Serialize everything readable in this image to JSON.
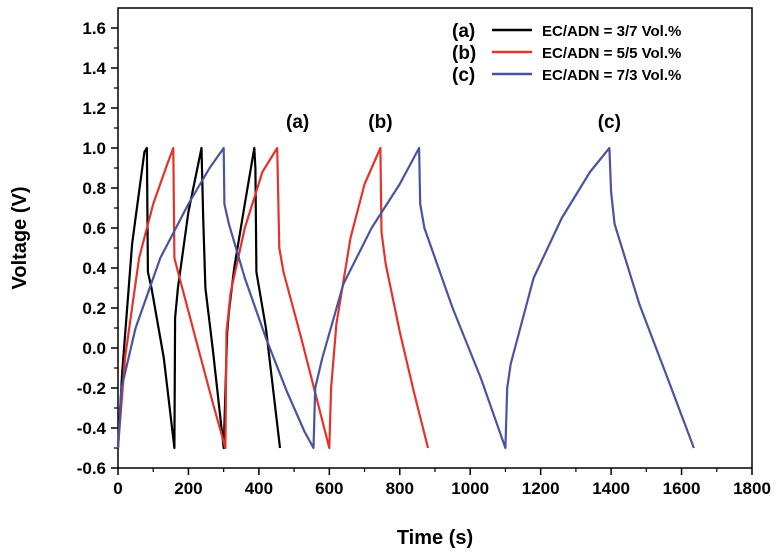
{
  "chart_data": {
    "type": "line",
    "title": "",
    "xlabel": "Time (s)",
    "ylabel": "Voltage (V)",
    "xlim": [
      0,
      1800
    ],
    "ylim": [
      -0.6,
      1.7
    ],
    "xticks": [
      0,
      200,
      400,
      600,
      800,
      1000,
      1200,
      1400,
      1600,
      1800
    ],
    "yticks": [
      -0.6,
      -0.4,
      -0.2,
      0.0,
      0.2,
      0.4,
      0.6,
      0.8,
      1.0,
      1.2,
      1.4,
      1.6
    ],
    "ytick_labels": [
      "-0.6",
      "-0.4",
      "-0.2",
      "0.0",
      "0.2",
      "0.4",
      "0.6",
      "0.8",
      "1.0",
      "1.2",
      "1.4",
      "1.6"
    ],
    "grid": false,
    "legend_position": "top-right",
    "series": [
      {
        "name": "EC/ADN = 3/7 Vol.%",
        "tag": "(a)",
        "color": "#000000",
        "x": [
          0,
          12,
          40,
          75,
          82,
          85,
          95,
          130,
          160,
          162,
          170,
          200,
          237,
          242,
          248,
          270,
          300,
          310,
          315,
          330,
          360,
          387,
          390,
          393,
          420,
          460
        ],
        "y": [
          -0.5,
          -0.12,
          0.52,
          0.98,
          1.0,
          0.38,
          0.3,
          -0.05,
          -0.5,
          0.15,
          0.3,
          0.68,
          1.0,
          0.65,
          0.3,
          -0.02,
          -0.5,
          0.08,
          0.18,
          0.4,
          0.72,
          1.0,
          0.9,
          0.38,
          0.1,
          -0.5
        ]
      },
      {
        "name": "EC/ADN = 5/5 Vol.%",
        "tag": "(b)",
        "color": "#e8312b",
        "x": [
          0,
          20,
          60,
          100,
          140,
          157,
          160,
          175,
          220,
          270,
          305,
          308,
          320,
          360,
          410,
          452,
          458,
          470,
          520,
          600,
          605,
          620,
          660,
          700,
          745,
          748,
          760,
          800,
          840,
          880
        ],
        "y": [
          -0.5,
          -0.05,
          0.45,
          0.72,
          0.92,
          1.0,
          0.45,
          0.35,
          0.05,
          -0.28,
          -0.5,
          0.08,
          0.28,
          0.6,
          0.88,
          1.0,
          0.5,
          0.38,
          0.05,
          -0.5,
          -0.2,
          0.12,
          0.55,
          0.82,
          1.0,
          0.58,
          0.42,
          0.08,
          -0.22,
          -0.5
        ]
      },
      {
        "name": "EC/ADN = 7/3 Vol.%",
        "tag": "(c)",
        "color": "#4854a0",
        "x": [
          0,
          10,
          50,
          120,
          200,
          260,
          300,
          302,
          315,
          360,
          420,
          480,
          530,
          555,
          560,
          580,
          640,
          720,
          800,
          855,
          858,
          870,
          950,
          1030,
          1100,
          1105,
          1115,
          1180,
          1260,
          1340,
          1395,
          1400,
          1410,
          1480,
          1560,
          1635
        ],
        "y": [
          -0.5,
          -0.2,
          0.1,
          0.45,
          0.72,
          0.9,
          1.0,
          0.72,
          0.62,
          0.35,
          0.05,
          -0.22,
          -0.42,
          -0.5,
          -0.2,
          -0.05,
          0.32,
          0.6,
          0.82,
          1.0,
          0.72,
          0.6,
          0.2,
          -0.15,
          -0.5,
          -0.2,
          -0.08,
          0.35,
          0.65,
          0.88,
          1.0,
          0.78,
          0.62,
          0.22,
          -0.15,
          -0.5
        ]
      }
    ],
    "annotations": [
      {
        "text": "(a)",
        "x": 510,
        "y": 1.1
      },
      {
        "text": "(b)",
        "x": 745,
        "y": 1.1
      },
      {
        "text": "(c)",
        "x": 1395,
        "y": 1.1
      }
    ]
  }
}
